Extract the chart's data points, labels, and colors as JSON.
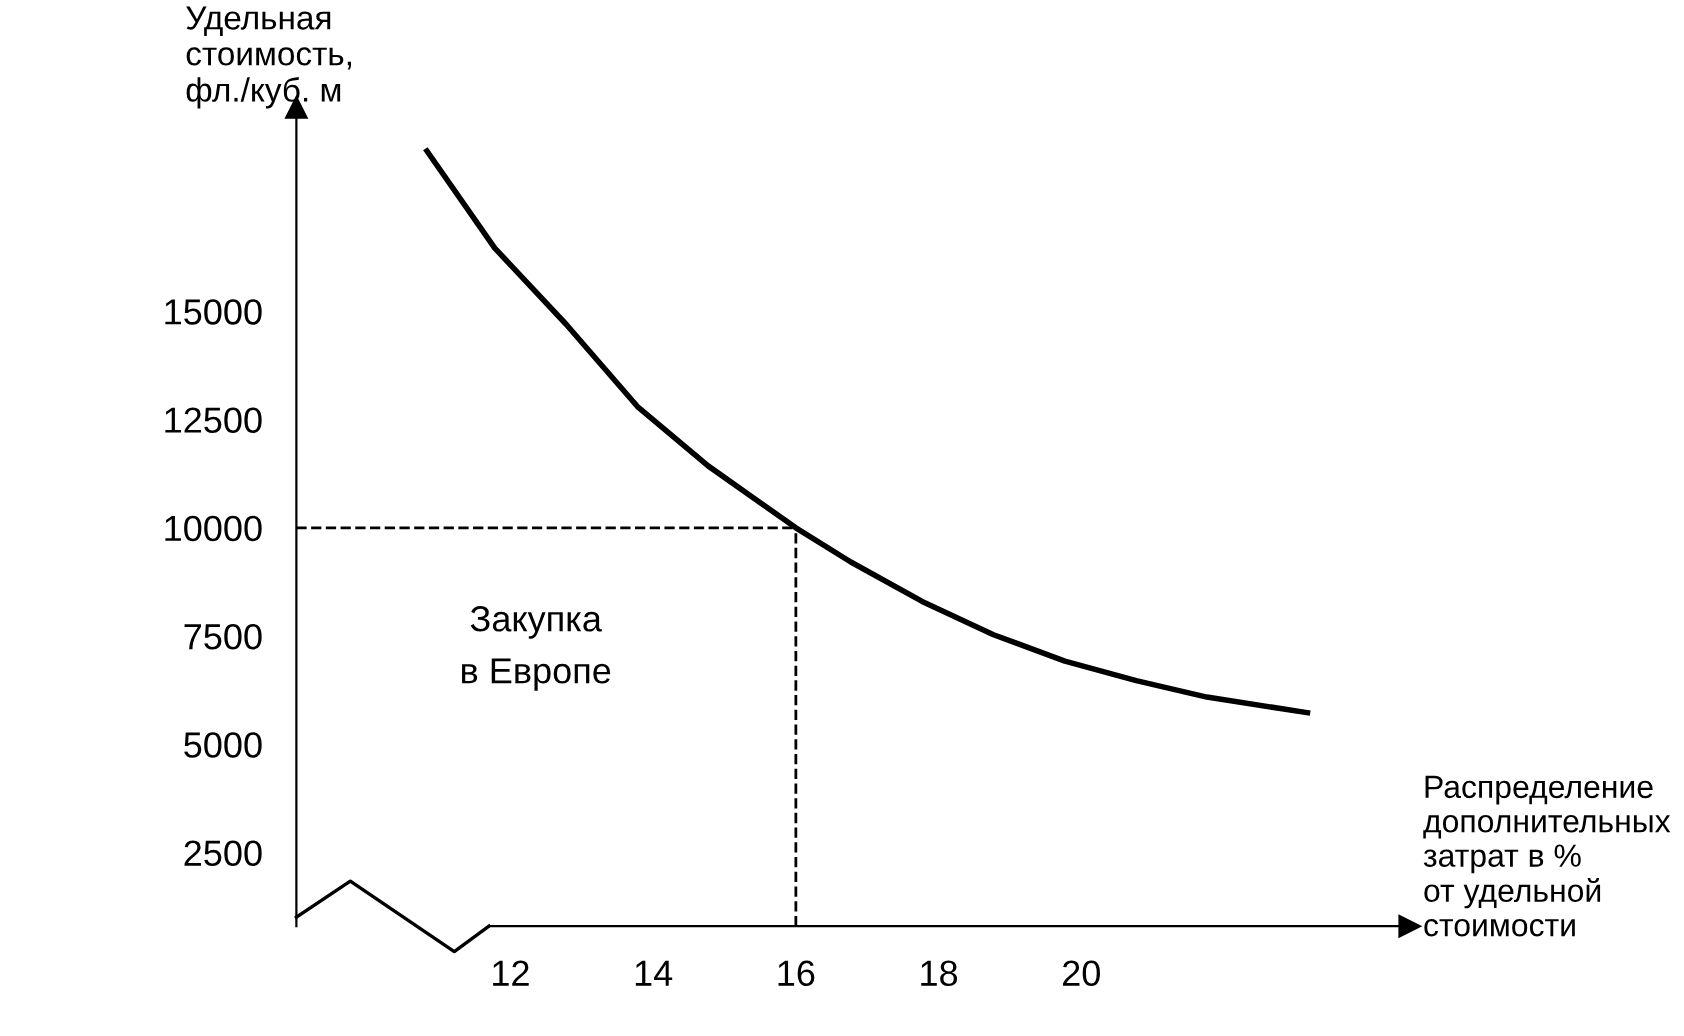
{
  "chart_data": {
    "type": "line",
    "ylabel": "Удельная\nстоимость,\nфл./куб. м",
    "xlabel": "Распределение\nдополнительных\nзатрат в %\nот удельной\nстоимости",
    "x": [
      10.83,
      11.78,
      12.78,
      13.78,
      14.77,
      16,
      16.77,
      17.77,
      18.77,
      19.77,
      20.77,
      21.76,
      23.17
    ],
    "series": [
      {
        "color": "#000000",
        "values": [
          18700,
          16460,
          14700,
          12800,
          11430,
          10000,
          9210,
          8300,
          7530,
          6920,
          6470,
          6090,
          5730
        ]
      }
    ],
    "xlim": [
      9,
      24.6
    ],
    "ylim": [
      800,
      19700
    ],
    "xticks": [
      12,
      14,
      16,
      18,
      20
    ],
    "yticks": [
      2500,
      5000,
      7500,
      10000,
      12500,
      15000
    ],
    "ref_lines": [
      {
        "axis": "y",
        "value": 10000,
        "line_style": "dashed",
        "color": "#000000"
      },
      {
        "axis": "x",
        "value": 16,
        "line_style": "dashed",
        "color": "#000000"
      }
    ],
    "annotations": [
      "Закупка\nв Европе"
    ],
    "grid": false,
    "legend": false,
    "marker": "none",
    "line_style": "solid"
  }
}
